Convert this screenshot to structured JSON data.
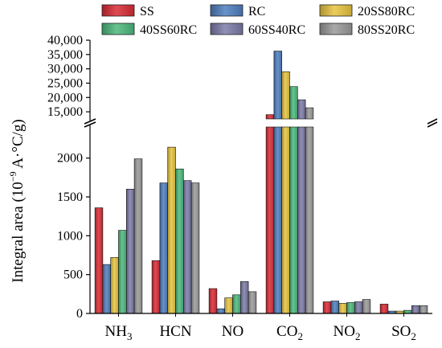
{
  "chart_data": {
    "type": "bar",
    "ylabel": {
      "main": "Integral area (10",
      "exp": "−9",
      "unit": " A·°C/g)"
    },
    "categories": [
      {
        "base": "NH",
        "sub": "3"
      },
      {
        "base": "HCN",
        "sub": ""
      },
      {
        "base": "NO",
        "sub": ""
      },
      {
        "base": "CO",
        "sub": "2"
      },
      {
        "base": "NO",
        "sub": "2"
      },
      {
        "base": "SO",
        "sub": "2"
      }
    ],
    "axis_break": true,
    "lower_axis": {
      "ylim": [
        0,
        2400
      ],
      "ticks": [
        0,
        500,
        1000,
        1500,
        2000
      ],
      "tick_labels": [
        "0",
        "500",
        "1000",
        "1500",
        "2000"
      ]
    },
    "upper_axis": {
      "ylim": [
        12500,
        40000
      ],
      "ticks": [
        15000,
        20000,
        25000,
        30000,
        35000,
        40000
      ],
      "tick_labels": [
        "15,000",
        "20,000",
        "25,000",
        "30,000",
        "35,000",
        "40,000"
      ]
    },
    "legend_position": "top",
    "series": [
      {
        "name": "SS",
        "color": "#d92b35",
        "values": [
          1360,
          680,
          320,
          14000,
          150,
          120
        ]
      },
      {
        "name": "RC",
        "color": "#4e7fbf",
        "values": [
          630,
          1680,
          60,
          36200,
          160,
          30
        ]
      },
      {
        "name": "20SS80RC",
        "color": "#e8c440",
        "values": [
          720,
          2140,
          200,
          29000,
          130,
          30
        ]
      },
      {
        "name": "40SS60RC",
        "color": "#4cb87c",
        "values": [
          1070,
          1860,
          240,
          23800,
          140,
          40
        ]
      },
      {
        "name": "60SS40RC",
        "color": "#7c7ba8",
        "values": [
          1600,
          1710,
          410,
          19200,
          150,
          100
        ]
      },
      {
        "name": "80SS20RC",
        "color": "#9a9a9a",
        "values": [
          1990,
          1680,
          280,
          16400,
          180,
          100
        ]
      }
    ]
  }
}
